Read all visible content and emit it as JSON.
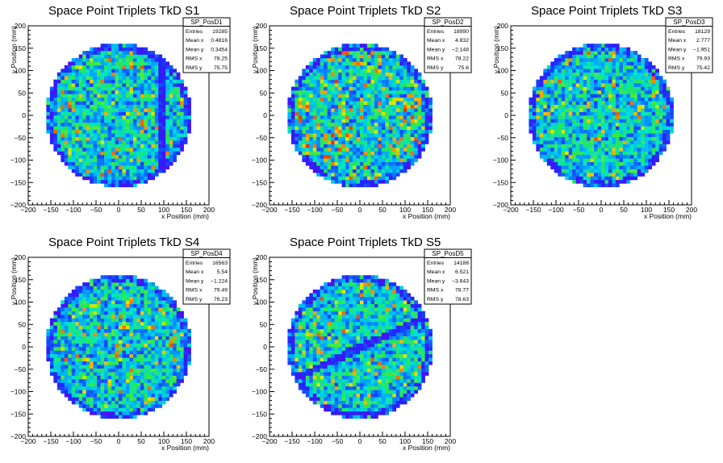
{
  "chart_data": [
    {
      "type": "heatmap",
      "title": "Space Point Triplets TkD S1",
      "xlabel": "x Position (mm)",
      "ylabel": "y Position (mm)",
      "xlim": [
        -200,
        200
      ],
      "ylim": [
        -200,
        200
      ],
      "xticks": [
        "−200",
        "−150",
        "−100",
        "−50",
        "0",
        "50",
        "100",
        "150",
        "200"
      ],
      "yticks": [
        "200",
        "150",
        "100",
        "50",
        "0",
        "−50",
        "−100",
        "−150",
        "−200"
      ],
      "stats": {
        "name": "SP_PosD1",
        "rows": [
          [
            "Entries",
            "19285"
          ],
          [
            "Mean x",
            "0.4816"
          ],
          [
            "Mean y",
            "0.3454"
          ],
          [
            "RMS x",
            "78.25"
          ],
          [
            "RMS y",
            "75.75"
          ]
        ]
      },
      "pattern": {
        "radius": 160,
        "band": {
          "type": "vertical",
          "x": 97,
          "halfwidth": 7
        },
        "seed": 11
      }
    },
    {
      "type": "heatmap",
      "title": "Space Point Triplets TkD S2",
      "xlabel": "x Position (mm)",
      "ylabel": "y Position (mm)",
      "xlim": [
        -200,
        200
      ],
      "ylim": [
        -200,
        200
      ],
      "xticks": [
        "−200",
        "−150",
        "−100",
        "−50",
        "0",
        "50",
        "100",
        "150",
        "200"
      ],
      "yticks": [
        "200",
        "150",
        "100",
        "50",
        "0",
        "−50",
        "−100",
        "−150",
        "−200"
      ],
      "stats": {
        "name": "SP_PosD2",
        "rows": [
          [
            "Entries",
            "18990"
          ],
          [
            "Mean x",
            "4.832"
          ],
          [
            "Mean y",
            "−2.148"
          ],
          [
            "RMS x",
            "78.22"
          ],
          [
            "RMS y",
            "75.6"
          ]
        ]
      },
      "pattern": {
        "radius": 160,
        "band": null,
        "seed": 23,
        "hot": true
      }
    },
    {
      "type": "heatmap",
      "title": "Space Point Triplets TkD S3",
      "xlabel": "x Position (mm)",
      "ylabel": "y Position (mm)",
      "xlim": [
        -200,
        200
      ],
      "ylim": [
        -200,
        200
      ],
      "xticks": [
        "−200",
        "−150",
        "−100",
        "−50",
        "0",
        "50",
        "100",
        "150",
        "200"
      ],
      "yticks": [
        "200",
        "150",
        "100",
        "50",
        "0",
        "−50",
        "−100",
        "−150",
        "−200"
      ],
      "stats": {
        "name": "SP_PosD3",
        "rows": [
          [
            "Entries",
            "18129"
          ],
          [
            "Mean x",
            "2.777"
          ],
          [
            "Mean y",
            "−1.951"
          ],
          [
            "RMS x",
            "79.93"
          ],
          [
            "RMS y",
            "75.42"
          ]
        ]
      },
      "pattern": {
        "radius": 160,
        "band": null,
        "seed": 37
      }
    },
    {
      "type": "heatmap",
      "title": "Space Point Triplets TkD S4",
      "xlabel": "x Position (mm)",
      "ylabel": "y Position (mm)",
      "xlim": [
        -200,
        200
      ],
      "ylim": [
        -200,
        200
      ],
      "xticks": [
        "−200",
        "−150",
        "−100",
        "−50",
        "0",
        "50",
        "100",
        "150",
        "200"
      ],
      "yticks": [
        "200",
        "150",
        "100",
        "50",
        "0",
        "−50",
        "−100",
        "−150",
        "−200"
      ],
      "stats": {
        "name": "SP_PosD4",
        "rows": [
          [
            "Entries",
            "16563"
          ],
          [
            "Mean x",
            "5.54"
          ],
          [
            "Mean y",
            "−1.224"
          ],
          [
            "RMS x",
            "79.49"
          ],
          [
            "RMS y",
            "76.23"
          ]
        ]
      },
      "pattern": {
        "radius": 160,
        "band": null,
        "seed": 41
      }
    },
    {
      "type": "heatmap",
      "title": "Space Point Triplets TkD S5",
      "xlabel": "x Position (mm)",
      "ylabel": "y Position (mm)",
      "xlim": [
        -200,
        200
      ],
      "ylim": [
        -200,
        200
      ],
      "xticks": [
        "−200",
        "−150",
        "−100",
        "−50",
        "0",
        "50",
        "100",
        "150",
        "200"
      ],
      "yticks": [
        "200",
        "150",
        "100",
        "50",
        "0",
        "−50",
        "−100",
        "−150",
        "−200"
      ],
      "stats": {
        "name": "SP_PosD5",
        "rows": [
          [
            "Entries",
            "14188"
          ],
          [
            "Mean x",
            "6.521"
          ],
          [
            "Mean y",
            "−3.643"
          ],
          [
            "RMS x",
            "78.77"
          ],
          [
            "RMS y",
            "78.63"
          ]
        ]
      },
      "pattern": {
        "radius": 160,
        "band": {
          "type": "diagonal",
          "x0": -130,
          "y0": -65,
          "x1": 160,
          "y1": 75,
          "halfwidth": 8
        },
        "seed": 53
      }
    }
  ]
}
